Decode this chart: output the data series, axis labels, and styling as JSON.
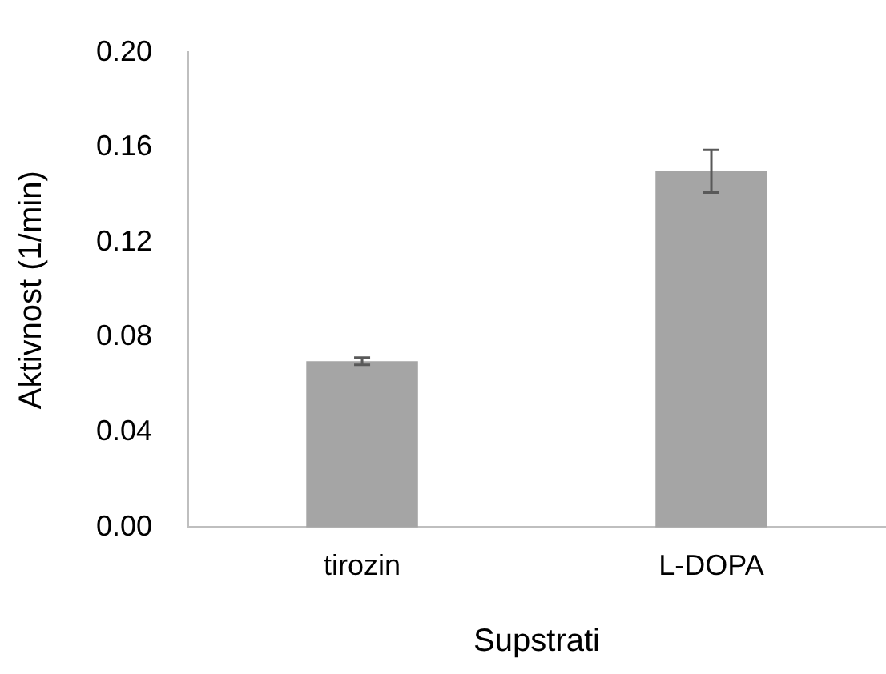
{
  "chart_data": {
    "type": "bar",
    "categories": [
      "tirozin",
      "L-DOPA"
    ],
    "values": [
      0.07,
      0.15
    ],
    "errors": [
      0.0015,
      0.009
    ],
    "color": "#a5a5a5",
    "xlabel": "Supstrati",
    "ylabel": "Aktivnost (1/min)",
    "ylim": [
      0,
      0.2
    ],
    "yticks": [
      {
        "value": 0,
        "label": "0.00"
      },
      {
        "value": 0.04,
        "label": "0.04"
      },
      {
        "value": 0.08,
        "label": "0.08"
      },
      {
        "value": 0.12,
        "label": "0.12"
      },
      {
        "value": 0.16,
        "label": "0.16"
      },
      {
        "value": 0.2,
        "label": "0.20"
      }
    ],
    "grid": false,
    "legend": false
  }
}
